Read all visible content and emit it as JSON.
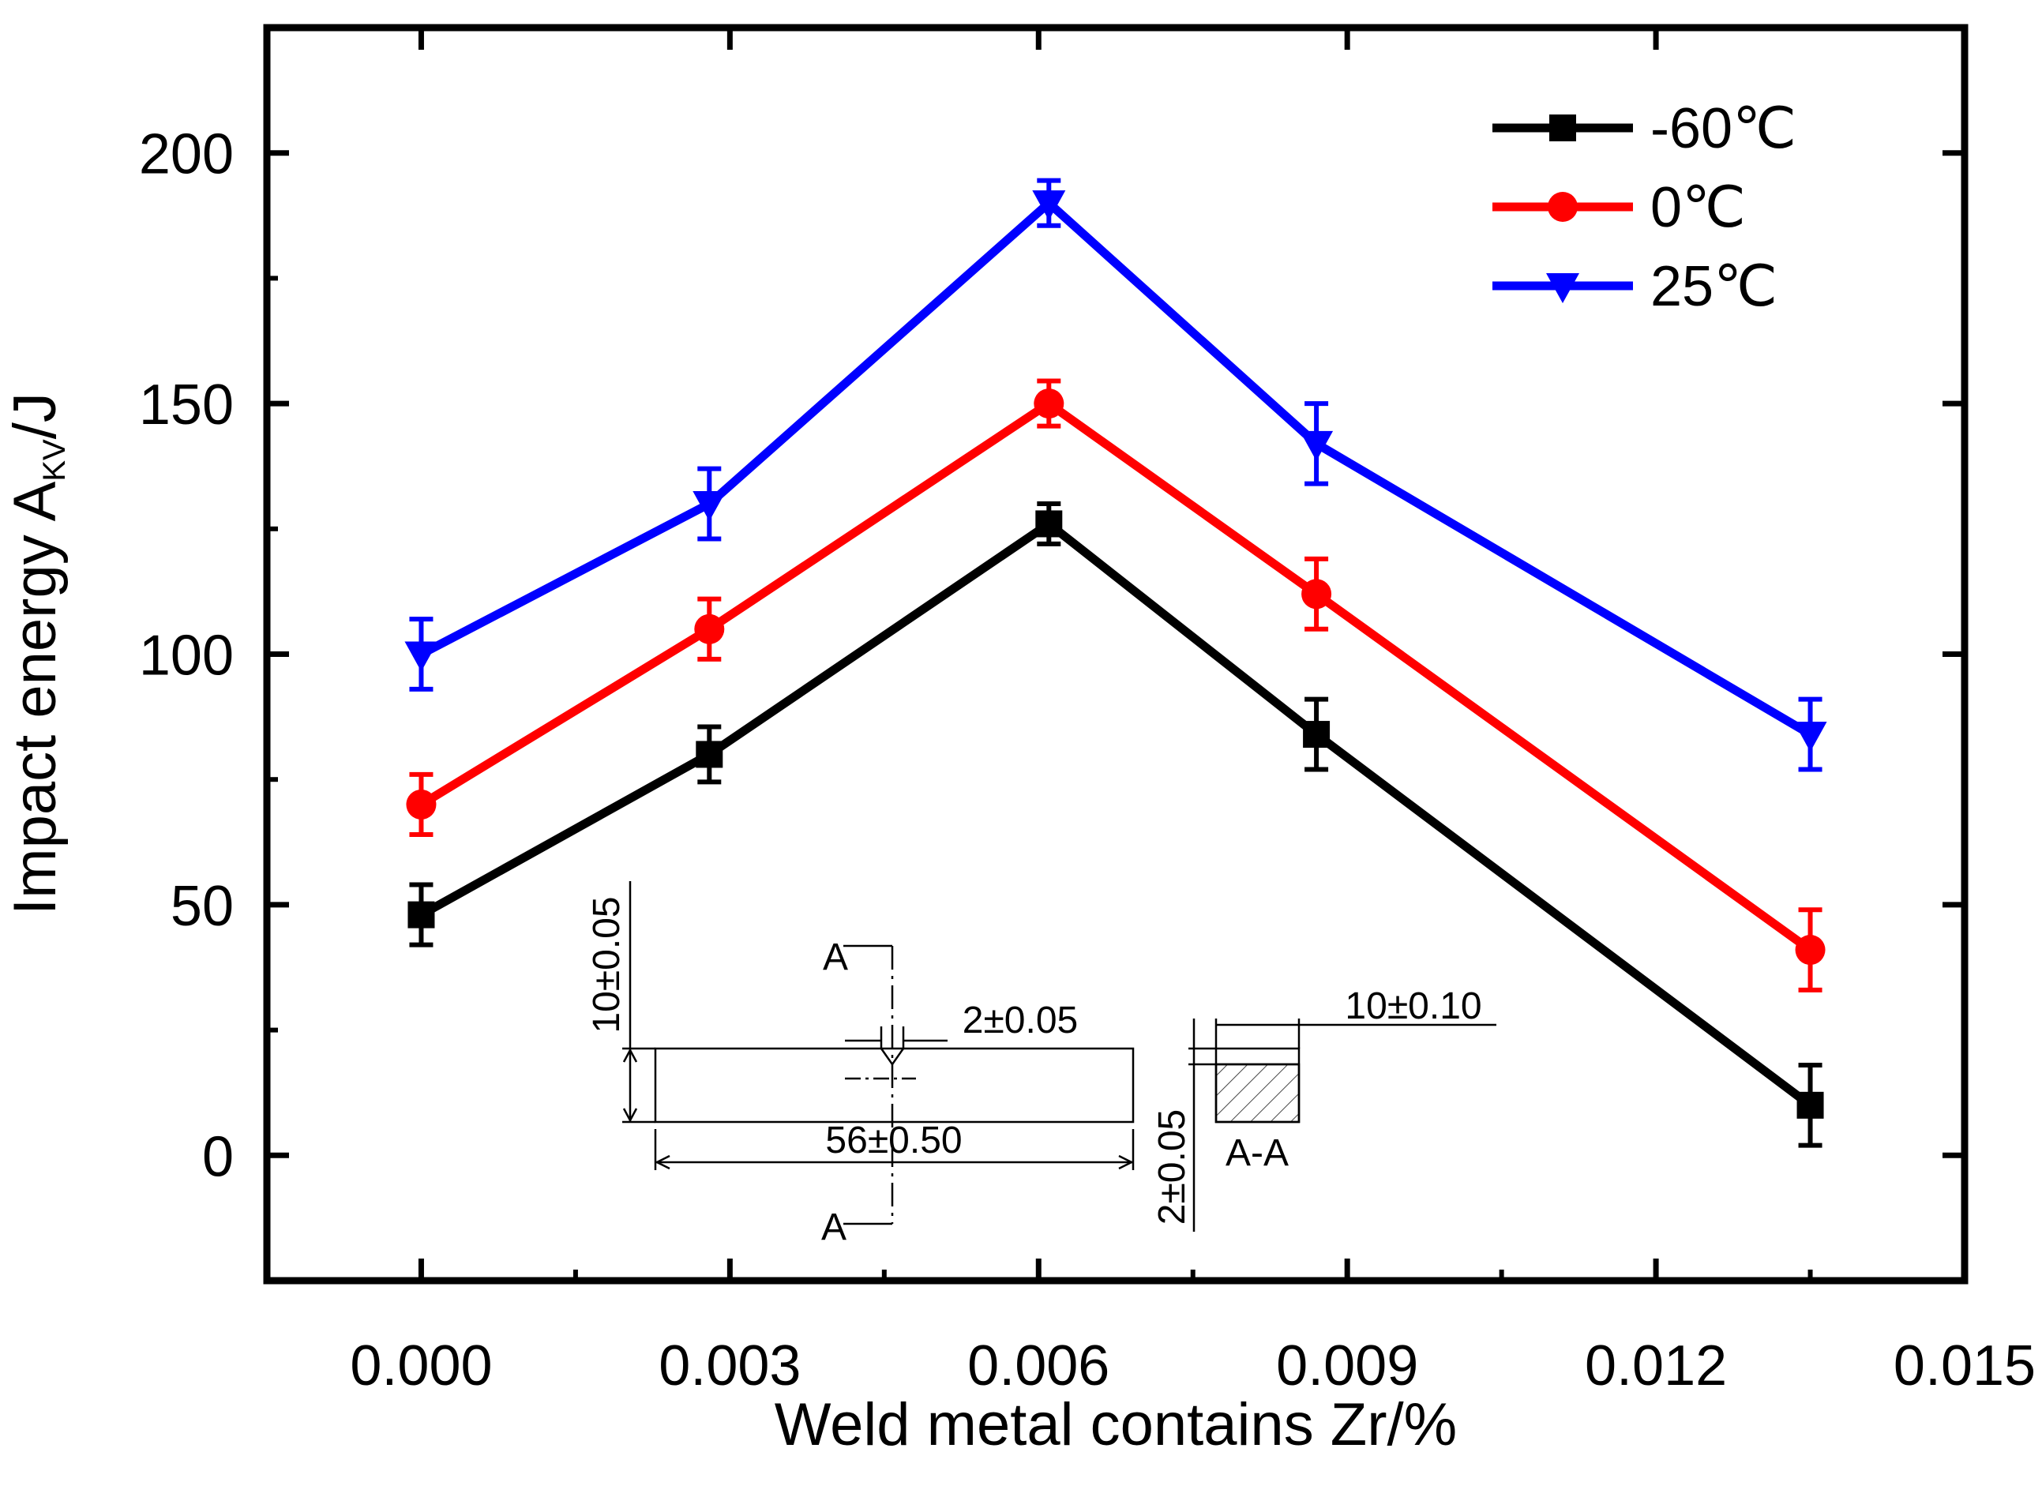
{
  "chart_data": {
    "type": "line",
    "title": "",
    "xlabel": "Weld metal contains Zr/%",
    "ylabel_main": "Impact energy A",
    "ylabel_sub": "KV",
    "ylabel_unit": "/J",
    "xlim": [
      -0.0015,
      0.015
    ],
    "ylim": [
      -25,
      225
    ],
    "xticks": [
      0.0,
      0.003,
      0.006,
      0.009,
      0.012,
      0.015
    ],
    "xtick_labels": [
      "0.000",
      "0.003",
      "0.006",
      "0.009",
      "0.012",
      "0.015"
    ],
    "yticks": [
      0,
      50,
      100,
      150,
      200
    ],
    "ytick_labels": [
      "0",
      "50",
      "100",
      "150",
      "200"
    ],
    "x": [
      0.0,
      0.0028,
      0.0061,
      0.0087,
      0.0135
    ],
    "series": [
      {
        "name": "-60℃",
        "color": "#000000",
        "marker": "square",
        "values": [
          48,
          80,
          126,
          84,
          10
        ],
        "errors": [
          6,
          5.5,
          4,
          7,
          8
        ]
      },
      {
        "name": "0℃",
        "color": "#ff0000",
        "marker": "circle",
        "values": [
          70,
          105,
          150,
          112,
          41
        ],
        "errors": [
          6,
          6,
          4.5,
          7,
          8
        ]
      },
      {
        "name": "25℃",
        "color": "#0000ff",
        "marker": "triangle-down",
        "values": [
          100,
          130,
          190,
          142,
          84
        ],
        "errors": [
          7,
          7,
          4.5,
          8,
          7
        ]
      }
    ],
    "legend_position": "top-right",
    "grid": false
  },
  "inset": {
    "height_dim": "10±0.05",
    "notch_dim": "2±0.05",
    "length_dim": "56±0.50",
    "width_dim": "10±0.10",
    "depth_dim": "2±0.05",
    "section_mark": "A",
    "section_label": "A-A"
  }
}
